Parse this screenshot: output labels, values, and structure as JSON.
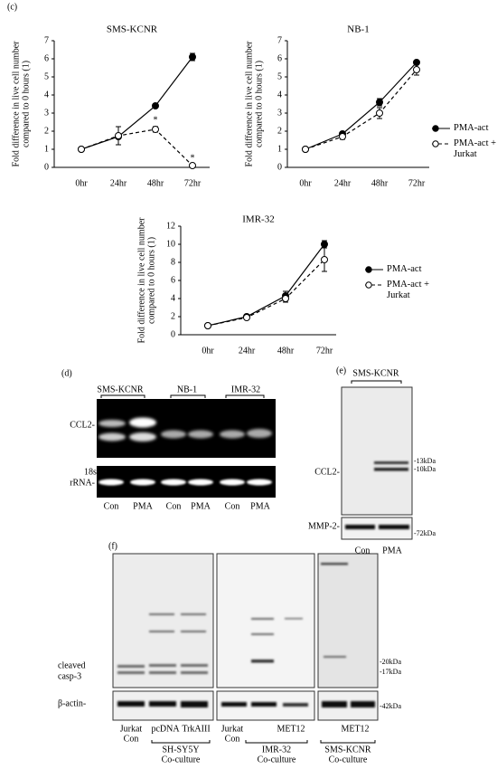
{
  "chart_data": [
    {
      "type": "line",
      "title": "SMS-KCNR",
      "ylabel": [
        "Fold difference in live cell number",
        "compared to 0 hours (1)"
      ],
      "categories": [
        "0hr",
        "24hr",
        "48hr",
        "72hr"
      ],
      "ylim": [
        0,
        7
      ],
      "yticks": [
        0,
        1,
        2,
        3,
        4,
        5,
        6,
        7
      ],
      "series": [
        {
          "name": "PMA-act",
          "color": "#000000",
          "marker": "filled",
          "linestyle": "solid",
          "values": [
            1,
            1.7,
            3.4,
            6.1
          ],
          "errors": [
            0,
            0.1,
            0.1,
            0.2
          ]
        },
        {
          "name": "PMA-act + Jurkat",
          "color": "#000000",
          "marker": "open",
          "linestyle": "dashed",
          "values": [
            1,
            1.75,
            2.1,
            0.1
          ],
          "errors": [
            0,
            0.5,
            0.15,
            0.05
          ]
        }
      ],
      "annotations": [
        {
          "text": "*",
          "x": "48hr",
          "series": "PMA-act + Jurkat"
        },
        {
          "text": "*",
          "x": "72hr",
          "series": "PMA-act + Jurkat"
        }
      ]
    },
    {
      "type": "line",
      "title": "NB-1",
      "ylabel": [
        "Fold difference in live cell number",
        "compared to 0 hours (1)"
      ],
      "categories": [
        "0hr",
        "24hr",
        "48hr",
        "72hr"
      ],
      "ylim": [
        0,
        7
      ],
      "yticks": [
        0,
        1,
        2,
        3,
        4,
        5,
        6,
        7
      ],
      "legend": "right",
      "series": [
        {
          "name": "PMA-act",
          "color": "#000000",
          "marker": "filled",
          "linestyle": "solid",
          "values": [
            1,
            1.85,
            3.6,
            5.8
          ],
          "errors": [
            0,
            0.1,
            0.2,
            0.1
          ]
        },
        {
          "name": "PMA-act + Jurkat",
          "color": "#000000",
          "marker": "open",
          "linestyle": "dashed",
          "values": [
            1,
            1.7,
            3.0,
            5.4
          ],
          "errors": [
            0,
            0.15,
            0.3,
            0.3
          ]
        }
      ]
    },
    {
      "type": "line",
      "title": "IMR-32",
      "ylabel": [
        "Fold difference in live cell number",
        "compared to 0 hours (1)"
      ],
      "categories": [
        "0hr",
        "24hr",
        "48hr",
        "72hr"
      ],
      "ylim": [
        0,
        12
      ],
      "yticks": [
        0,
        2,
        4,
        6,
        8,
        10,
        12
      ],
      "legend": "right",
      "series": [
        {
          "name": "PMA-act",
          "color": "#000000",
          "marker": "filled",
          "linestyle": "solid",
          "values": [
            1,
            2.0,
            4.3,
            10
          ],
          "errors": [
            0,
            0.2,
            0.5,
            0.4
          ]
        },
        {
          "name": "PMA-act + Jurkat",
          "color": "#000000",
          "marker": "open",
          "linestyle": "dashed",
          "values": [
            1,
            1.9,
            4.0,
            8.3
          ],
          "errors": [
            0,
            0.2,
            0.4,
            1.3
          ]
        }
      ]
    }
  ],
  "panels": {
    "c": "(c)",
    "d": "(d)",
    "e": "(e)",
    "f": "(f)"
  },
  "panel_d": {
    "groups": [
      "SMS-KCNR",
      "NB-1",
      "IMR-32"
    ],
    "rows": [
      [
        "CCL2-"
      ],
      [
        "18s",
        "rRNA-"
      ]
    ],
    "lanes": [
      "Con",
      "PMA",
      "Con",
      "PMA",
      "Con",
      "PMA"
    ]
  },
  "panel_e": {
    "group": "SMS-KCNR",
    "rows": [
      "CCL2-",
      "MMP-2-"
    ],
    "sizes": [
      "-13kDa",
      "-10kDa",
      "-72kDa"
    ],
    "lanes": [
      "Con",
      "PMA"
    ]
  },
  "panel_f": {
    "rows": [
      [
        "cleaved",
        "casp-3"
      ],
      [
        "β-actin-"
      ]
    ],
    "sizes": [
      "-20kDa",
      "-17kDa",
      "-42kDa"
    ],
    "lanes": [
      [
        "Jurkat",
        "Con"
      ],
      [
        "pcDNA"
      ],
      [
        "TrkAIII"
      ],
      [
        "Jurkat",
        "Con"
      ],
      [
        "MET12"
      ],
      [
        "MET12"
      ]
    ],
    "groups": [
      [
        "SH-SY5Y",
        "Co-culture"
      ],
      [
        "IMR-32",
        "Co-culture"
      ],
      [
        "SMS-KCNR",
        "Co-culture"
      ]
    ]
  }
}
